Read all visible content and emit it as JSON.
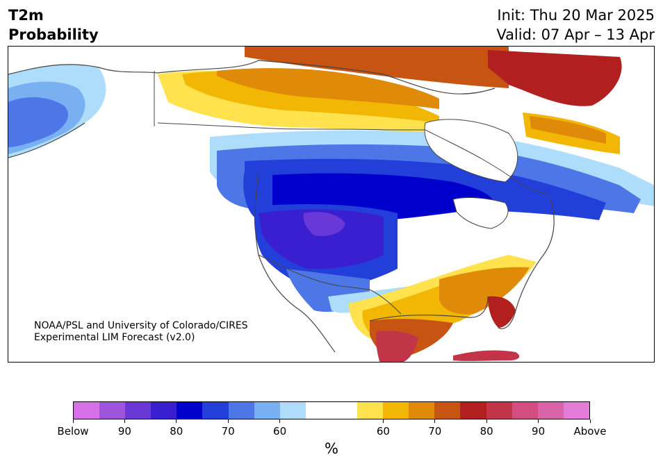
{
  "title": {
    "line1": "T2m",
    "line2": "Probability"
  },
  "init": "Init: Thu 20 Mar 2025",
  "valid": "Valid: 07 Apr – 13 Apr",
  "credit": {
    "line1": "NOAA/PSL and University of Colorado/CIRES",
    "line2": "Experimental LIM Forecast (v2.0)"
  },
  "colorbar": {
    "colors": [
      "#d670e6",
      "#9e54db",
      "#6a38d6",
      "#3a1fd1",
      "#0000cc",
      "#233fd9",
      "#4d76e6",
      "#78b0f2",
      "#aedcfb",
      "#ffffff",
      "#ffffff",
      "#ffe24d",
      "#f2b705",
      "#e08a0a",
      "#c85414",
      "#b21f1f",
      "#c23448",
      "#d24e80",
      "#d964a8",
      "#e37bd8"
    ],
    "tick_labels": [
      "Below",
      "90",
      "80",
      "70",
      "60",
      "60",
      "70",
      "80",
      "90",
      "Above"
    ],
    "unit": "%"
  },
  "colors": {
    "land_neutral": "#ffffff",
    "cold_light": "#aedcfb",
    "cold_mid": "#4d76e6",
    "cold_deep": "#0000cc",
    "cold_extreme": "#6a38d6",
    "warm_light": "#ffe24d",
    "warm_mid": "#e08a0a",
    "warm_deep": "#b21f1f",
    "warm_extreme": "#c23448"
  }
}
